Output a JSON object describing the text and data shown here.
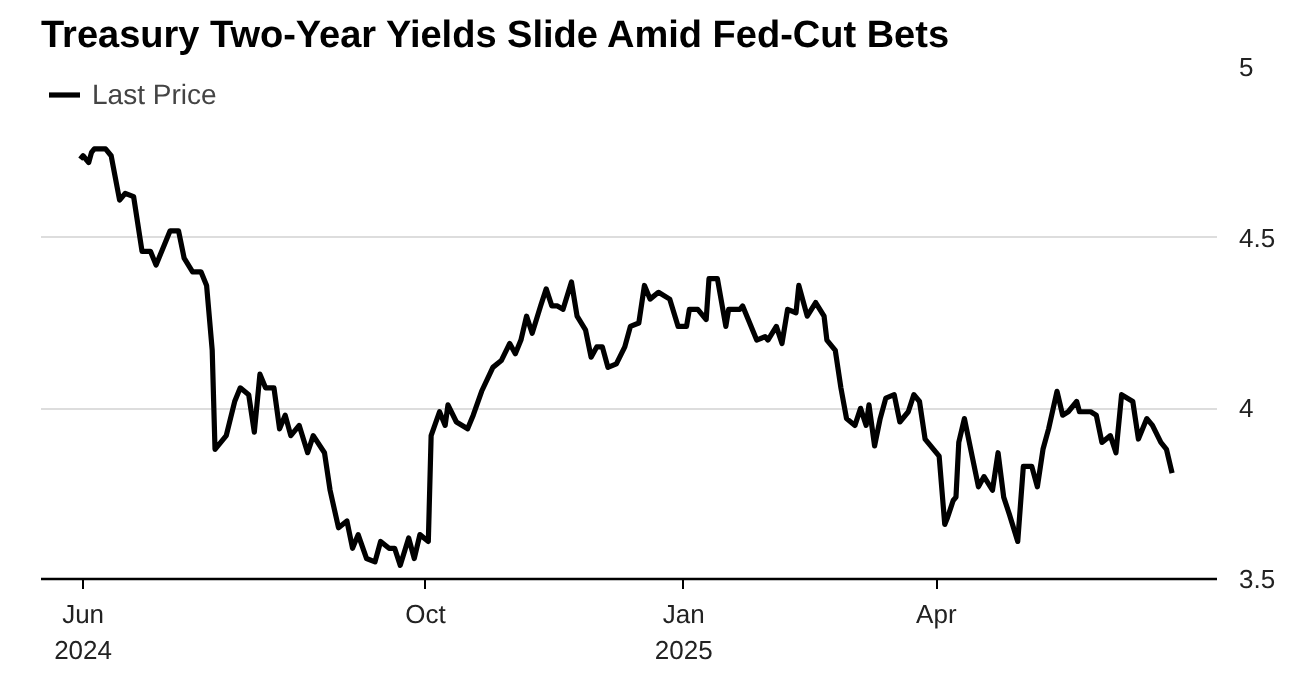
{
  "chart_data": {
    "type": "line",
    "title": "Treasury Two-Year Yields Slide Amid Fed-Cut Bets",
    "x": [
      "2024-05-31",
      "2024-06-01",
      "2024-06-03",
      "2024-06-04",
      "2024-06-05",
      "2024-06-09",
      "2024-06-11",
      "2024-06-14",
      "2024-06-16",
      "2024-06-19",
      "2024-06-22",
      "2024-06-25",
      "2024-06-27",
      "2024-06-30",
      "2024-07-02",
      "2024-07-05",
      "2024-07-07",
      "2024-07-10",
      "2024-07-13",
      "2024-07-15",
      "2024-07-17",
      "2024-07-18",
      "2024-07-22",
      "2024-07-25",
      "2024-07-27",
      "2024-07-30",
      "2024-08-01",
      "2024-08-03",
      "2024-08-05",
      "2024-08-08",
      "2024-08-10",
      "2024-08-12",
      "2024-08-14",
      "2024-08-17",
      "2024-08-20",
      "2024-08-22",
      "2024-08-26",
      "2024-08-28",
      "2024-08-31",
      "2024-09-03",
      "2024-09-05",
      "2024-09-07",
      "2024-09-10",
      "2024-09-13",
      "2024-09-15",
      "2024-09-18",
      "2024-09-20",
      "2024-09-22",
      "2024-09-25",
      "2024-09-27",
      "2024-09-29",
      "2024-10-02",
      "2024-10-03",
      "2024-10-06",
      "2024-10-08",
      "2024-10-09",
      "2024-10-12",
      "2024-10-16",
      "2024-10-18",
      "2024-10-21",
      "2024-10-25",
      "2024-10-28",
      "2024-10-31",
      "2024-11-02",
      "2024-11-04",
      "2024-11-06",
      "2024-11-08",
      "2024-11-11",
      "2024-11-13",
      "2024-11-15",
      "2024-11-17",
      "2024-11-19",
      "2024-11-22",
      "2024-11-24",
      "2024-11-27",
      "2024-11-29",
      "2024-12-01",
      "2024-12-03",
      "2024-12-05",
      "2024-12-08",
      "2024-12-11",
      "2024-12-13",
      "2024-12-16",
      "2024-12-18",
      "2024-12-20",
      "2024-12-23",
      "2024-12-27",
      "2024-12-30",
      "2025-01-02",
      "2025-01-03",
      "2025-01-06",
      "2025-01-09",
      "2025-01-10",
      "2025-01-13",
      "2025-01-16",
      "2025-01-17",
      "2025-01-21",
      "2025-01-22",
      "2025-01-27",
      "2025-01-30",
      "2025-01-31",
      "2025-02-03",
      "2025-02-05",
      "2025-02-07",
      "2025-02-10",
      "2025-02-11",
      "2025-02-14",
      "2025-02-17",
      "2025-02-20",
      "2025-02-21",
      "2025-02-24",
      "2025-02-26",
      "2025-02-28",
      "2025-03-03",
      "2025-03-05",
      "2025-03-07",
      "2025-03-08",
      "2025-03-10",
      "2025-03-12",
      "2025-03-14",
      "2025-03-17",
      "2025-03-19",
      "2025-03-22",
      "2025-03-24",
      "2025-03-26",
      "2025-03-28",
      "2025-04-02",
      "2025-04-04",
      "2025-04-05",
      "2025-04-07",
      "2025-04-08",
      "2025-04-09",
      "2025-04-11",
      "2025-04-14",
      "2025-04-16",
      "2025-04-18",
      "2025-04-21",
      "2025-04-23",
      "2025-04-25",
      "2025-04-27",
      "2025-04-30",
      "2025-05-02",
      "2025-05-05",
      "2025-05-07",
      "2025-05-09",
      "2025-05-11",
      "2025-05-14",
      "2025-05-16",
      "2025-05-18",
      "2025-05-21",
      "2025-05-22",
      "2025-05-26",
      "2025-05-28",
      "2025-05-30",
      "2025-06-02",
      "2025-06-04",
      "2025-06-06",
      "2025-06-10",
      "2025-06-12",
      "2025-06-15",
      "2025-06-17",
      "2025-06-20",
      "2025-06-22",
      "2025-06-24"
    ],
    "series": [
      {
        "name": "Last Price",
        "color": "#000000",
        "values": [
          4.73,
          4.74,
          4.72,
          4.75,
          4.76,
          4.76,
          4.74,
          4.61,
          4.63,
          4.62,
          4.46,
          4.46,
          4.42,
          4.48,
          4.52,
          4.52,
          4.44,
          4.4,
          4.4,
          4.36,
          4.17,
          3.88,
          3.92,
          4.02,
          4.06,
          4.04,
          3.93,
          4.1,
          4.06,
          4.06,
          3.94,
          3.98,
          3.92,
          3.95,
          3.87,
          3.92,
          3.87,
          3.76,
          3.65,
          3.67,
          3.59,
          3.63,
          3.56,
          3.55,
          3.61,
          3.59,
          3.59,
          3.54,
          3.62,
          3.56,
          3.63,
          3.61,
          3.92,
          3.99,
          3.95,
          4.01,
          3.96,
          3.94,
          3.98,
          4.05,
          4.12,
          4.14,
          4.19,
          4.16,
          4.2,
          4.27,
          4.22,
          4.3,
          4.35,
          4.3,
          4.3,
          4.29,
          4.37,
          4.27,
          4.23,
          4.15,
          4.18,
          4.18,
          4.12,
          4.13,
          4.18,
          4.24,
          4.25,
          4.36,
          4.32,
          4.34,
          4.32,
          4.24,
          4.24,
          4.29,
          4.29,
          4.26,
          4.38,
          4.38,
          4.24,
          4.29,
          4.29,
          4.3,
          4.2,
          4.21,
          4.2,
          4.24,
          4.19,
          4.29,
          4.28,
          4.36,
          4.27,
          4.31,
          4.27,
          4.2,
          4.17,
          4.06,
          3.97,
          3.95,
          4.0,
          3.95,
          4.01,
          3.89,
          3.97,
          4.03,
          4.04,
          3.96,
          3.99,
          4.04,
          4.02,
          3.91,
          3.86,
          3.66,
          3.68,
          3.73,
          3.74,
          3.9,
          3.97,
          3.85,
          3.77,
          3.8,
          3.76,
          3.87,
          3.74,
          3.69,
          3.61,
          3.83,
          3.83,
          3.77,
          3.88,
          3.94,
          4.05,
          3.98,
          3.99,
          4.02,
          3.99,
          3.99,
          3.98,
          3.9,
          3.92,
          3.87,
          4.04,
          4.02,
          3.91,
          3.97,
          3.95,
          3.9,
          3.88,
          3.81
        ]
      }
    ],
    "xlim": [
      "2024-05-17",
      "2025-07-10"
    ],
    "xticks": [
      {
        "value": "2024-06-01",
        "label": "Jun\n2024"
      },
      {
        "value": "2024-10-01",
        "label": "Oct"
      },
      {
        "value": "2025-01-01",
        "label": "Jan\n2025"
      },
      {
        "value": "2025-04-01",
        "label": "Apr"
      }
    ],
    "ylim": [
      3.5,
      5
    ],
    "yticks": [
      3.5,
      4,
      4.5,
      5
    ],
    "grid": "y",
    "legend": "top left",
    "line_style": "solid",
    "marker": "none"
  }
}
